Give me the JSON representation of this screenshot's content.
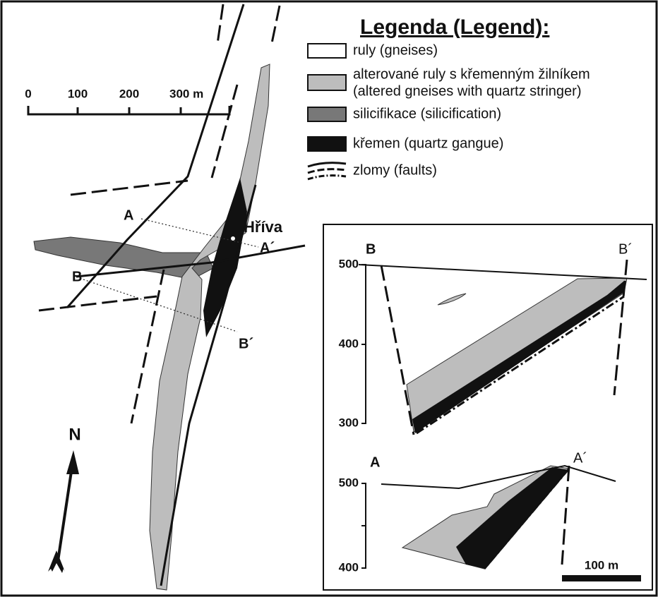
{
  "legend": {
    "title": "Legenda (Legend):",
    "items": [
      {
        "lines": [
          "ruly (gneises)"
        ]
      },
      {
        "lines": [
          "alterované ruly s křemenným žilníkem",
          "(altered gneises with quartz stringer)"
        ]
      },
      {
        "lines": [
          "silicifikace (silicification)"
        ]
      },
      {
        "lines": [
          "křemen (quartz gangue)"
        ]
      },
      {
        "lines": [
          "zlomy (faults)"
        ]
      }
    ]
  },
  "scale_bar": {
    "labels": [
      "0",
      "100",
      "200",
      "300 m"
    ]
  },
  "map": {
    "north": "N",
    "locality": "Hříva",
    "a_start": "A",
    "a_end": "A´",
    "b_start": "B",
    "b_end": "B´"
  },
  "sections": {
    "b": {
      "start": "B",
      "end": "B´",
      "elevations": [
        "500",
        "400",
        "300"
      ]
    },
    "a": {
      "start": "A",
      "end": "A´",
      "elevations": [
        "500",
        "400"
      ]
    },
    "scale": "100 m"
  }
}
